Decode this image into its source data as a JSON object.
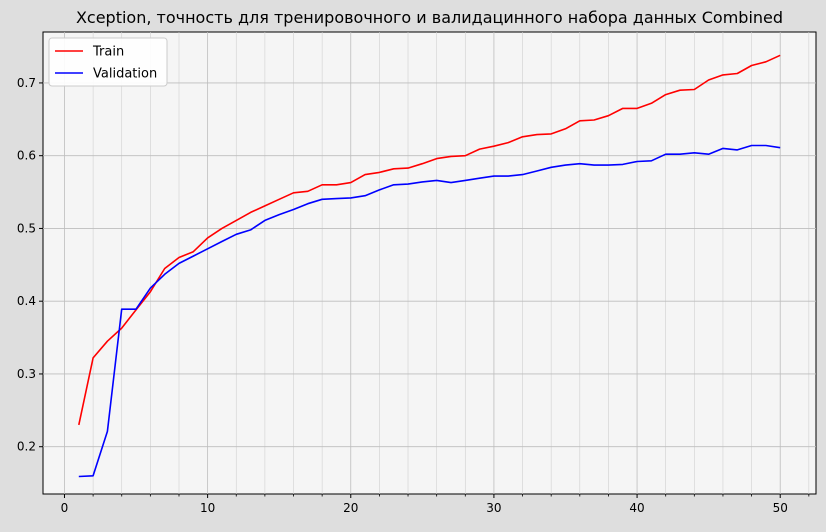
{
  "chart_data": {
    "type": "line",
    "title": "Xception, точность для тренировочного и валидацинного набора данных Combined",
    "xlabel": "",
    "ylabel": "",
    "xlim": [
      -1.5,
      52.5
    ],
    "ylim": [
      0.135,
      0.77
    ],
    "xticks": [
      0,
      10,
      20,
      30,
      40,
      50
    ],
    "xtick_labels": [
      "0",
      "10",
      "20",
      "30",
      "40",
      "50"
    ],
    "yticks": [
      0.2,
      0.3,
      0.4,
      0.5,
      0.6,
      0.7
    ],
    "ytick_labels": [
      "0.2",
      "0.3",
      "0.4",
      "0.5",
      "0.6",
      "0.7"
    ],
    "grid": true,
    "legend_position": "upper-left",
    "x": [
      1,
      2,
      3,
      4,
      5,
      6,
      7,
      8,
      9,
      10,
      11,
      12,
      13,
      14,
      15,
      16,
      17,
      18,
      19,
      20,
      21,
      22,
      23,
      24,
      25,
      26,
      27,
      28,
      29,
      30,
      31,
      32,
      33,
      34,
      35,
      36,
      37,
      38,
      39,
      40,
      41,
      42,
      43,
      44,
      45,
      46,
      47,
      48,
      49,
      50
    ],
    "series": [
      {
        "name": "Train",
        "color": "#ff0000",
        "values": [
          0.23,
          0.322,
          0.345,
          0.363,
          0.388,
          0.413,
          0.445,
          0.46,
          0.468,
          0.487,
          0.5,
          0.511,
          0.522,
          0.531,
          0.54,
          0.549,
          0.551,
          0.56,
          0.56,
          0.563,
          0.574,
          0.577,
          0.582,
          0.583,
          0.589,
          0.596,
          0.599,
          0.6,
          0.609,
          0.613,
          0.618,
          0.626,
          0.629,
          0.63,
          0.637,
          0.648,
          0.649,
          0.655,
          0.665,
          0.665,
          0.672,
          0.684,
          0.69,
          0.691,
          0.704,
          0.711,
          0.713,
          0.724,
          0.729,
          0.738
        ]
      },
      {
        "name": "Validation",
        "color": "#0000ff",
        "values": [
          0.159,
          0.16,
          0.221,
          0.389,
          0.389,
          0.418,
          0.437,
          0.452,
          0.462,
          0.472,
          0.482,
          0.492,
          0.498,
          0.511,
          0.519,
          0.526,
          0.534,
          0.54,
          0.541,
          0.542,
          0.545,
          0.553,
          0.56,
          0.561,
          0.564,
          0.566,
          0.563,
          0.566,
          0.569,
          0.572,
          0.572,
          0.574,
          0.579,
          0.584,
          0.587,
          0.589,
          0.587,
          0.587,
          0.588,
          0.592,
          0.593,
          0.602,
          0.602,
          0.604,
          0.602,
          0.61,
          0.608,
          0.614,
          0.614,
          0.611
        ]
      }
    ]
  }
}
